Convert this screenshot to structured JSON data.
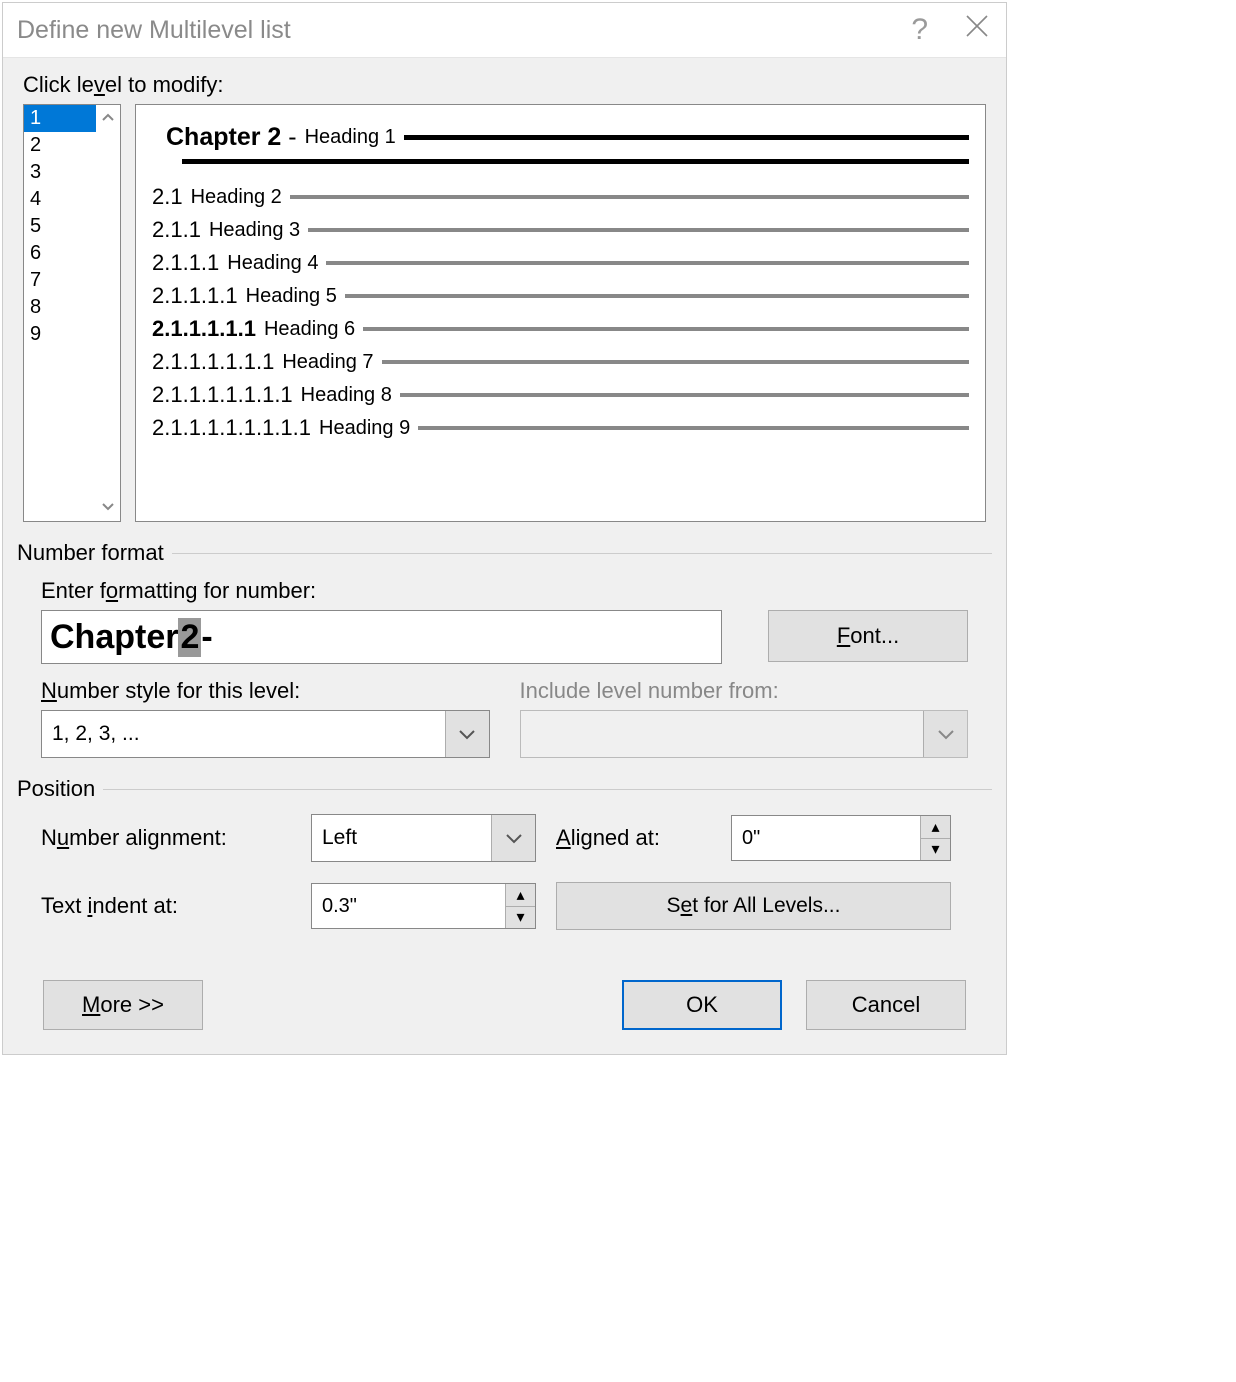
{
  "titlebar": {
    "title": "Define new Multilevel list"
  },
  "labels": {
    "click_level": "Click level to modify:",
    "click_level_u": "v",
    "number_format": "Number format",
    "enter_formatting": "Enter formatting for number:",
    "enter_formatting_u": "o",
    "number_style": "Number style for this level:",
    "number_style_u": "N",
    "include_level": "Include level number from:",
    "position": "Position",
    "number_alignment": "Number alignment:",
    "number_alignment_u": "u",
    "aligned_at": "Aligned at:",
    "aligned_at_u": "A",
    "text_indent": "Text indent at:",
    "text_indent_u": "i"
  },
  "levels": [
    "1",
    "2",
    "3",
    "4",
    "5",
    "6",
    "7",
    "8",
    "9"
  ],
  "selected_level": "1",
  "preview": {
    "l1_number": "Chapter 2",
    "l1_dash": " - ",
    "l1_label": "Heading 1",
    "rows": [
      {
        "num": "2.1",
        "label": "Heading 2",
        "indent": 0
      },
      {
        "num": "2.1.1",
        "label": "Heading 3",
        "indent": 0
      },
      {
        "num": "2.1.1.1",
        "label": "Heading 4",
        "indent": 0
      },
      {
        "num": "2.1.1.1.1",
        "label": "Heading 5",
        "indent": 0
      },
      {
        "num": "2.1.1.1.1.1",
        "label": "Heading 6",
        "indent": 0,
        "bold": true
      },
      {
        "num": "2.1.1.1.1.1.1",
        "label": "Heading 7",
        "indent": 0
      },
      {
        "num": "2.1.1.1.1.1.1.1",
        "label": "Heading 8",
        "indent": 0
      },
      {
        "num": "2.1.1.1.1.1.1.1.1",
        "label": "Heading 9",
        "indent": 0
      }
    ]
  },
  "number_format_value": {
    "prefix": "Chapter ",
    "token": "2",
    "suffix": " -"
  },
  "number_style_value": "1, 2, 3, ...",
  "include_level_value": "",
  "alignment_value": "Left",
  "aligned_at_value": "0\"",
  "text_indent_value": "0.3\"",
  "buttons": {
    "font": "Font...",
    "font_u": "F",
    "set_all": "Set for All Levels...",
    "set_all_u": "e",
    "more": "More >>",
    "more_u": "M",
    "ok": "OK",
    "cancel": "Cancel"
  }
}
